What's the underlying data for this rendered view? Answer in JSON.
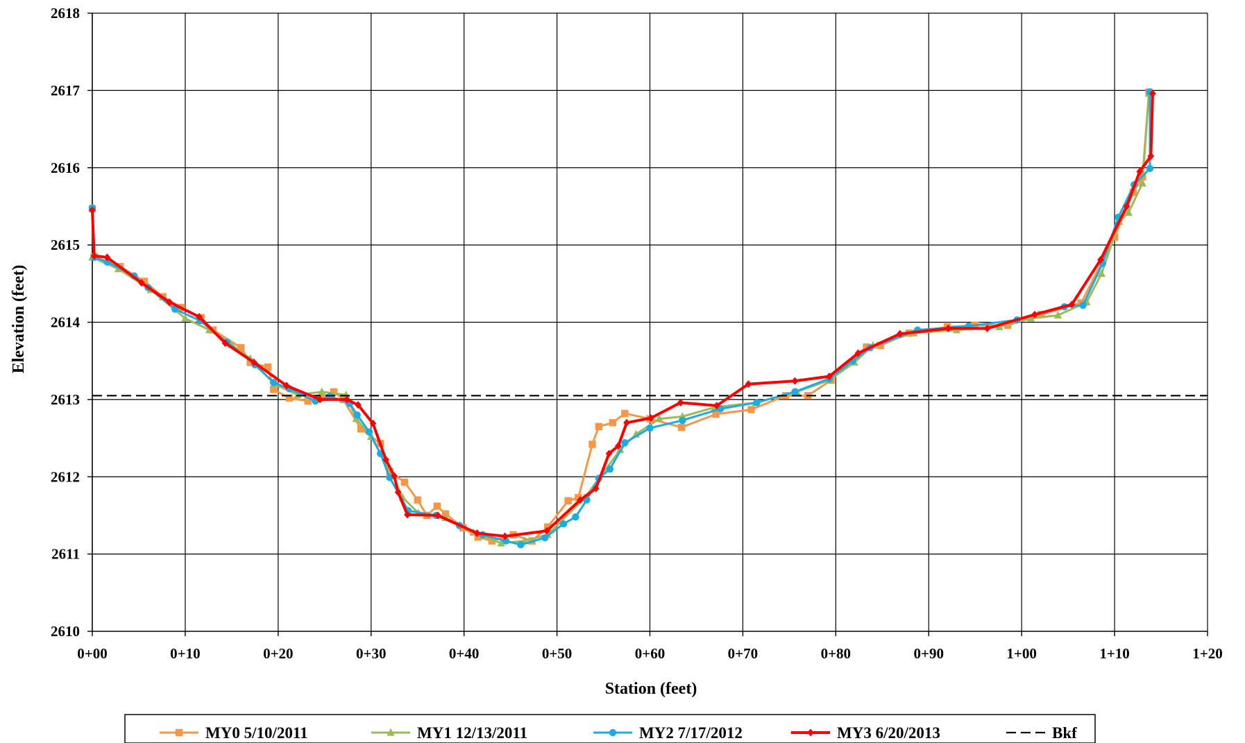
{
  "chart_data": {
    "type": "line",
    "title": "",
    "xlabel": "Station (feet)",
    "ylabel": "Elevation (feet)",
    "xlim": [
      0,
      120
    ],
    "ylim": [
      2610,
      2618
    ],
    "x_ticks": [
      0,
      10,
      20,
      30,
      40,
      50,
      60,
      70,
      80,
      90,
      100,
      110,
      120
    ],
    "x_tick_labels": [
      "0+00",
      "0+10",
      "0+20",
      "0+30",
      "0+40",
      "0+50",
      "0+60",
      "0+70",
      "0+80",
      "0+90",
      "1+00",
      "1+10",
      "1+20"
    ],
    "y_ticks": [
      2610,
      2611,
      2612,
      2613,
      2614,
      2615,
      2616,
      2617,
      2618
    ],
    "y_tick_labels": [
      "2610",
      "2611",
      "2612",
      "2613",
      "2614",
      "2615",
      "2616",
      "2617",
      "2618"
    ],
    "grid": true,
    "legend_position": "bottom",
    "series": [
      {
        "name": "MY0 5/10/2011",
        "color": "#F79646",
        "marker": "square",
        "points": [
          [
            0,
            2615.47
          ],
          [
            0.2,
            2614.85
          ],
          [
            3,
            2614.72
          ],
          [
            5.6,
            2614.53
          ],
          [
            7.6,
            2614.33
          ],
          [
            9.6,
            2614.19
          ],
          [
            11.7,
            2614.06
          ],
          [
            13,
            2613.9
          ],
          [
            16,
            2613.67
          ],
          [
            17,
            2613.48
          ],
          [
            18.9,
            2613.42
          ],
          [
            19.5,
            2613.13
          ],
          [
            21.2,
            2613.02
          ],
          [
            23.2,
            2612.98
          ],
          [
            24.5,
            2613.02
          ],
          [
            26,
            2613.1
          ],
          [
            27,
            2613
          ],
          [
            28.9,
            2612.62
          ],
          [
            31,
            2612.43
          ],
          [
            32,
            2612.07
          ],
          [
            33.6,
            2611.93
          ],
          [
            35,
            2611.7
          ],
          [
            36,
            2611.5
          ],
          [
            37.1,
            2611.62
          ],
          [
            38,
            2611.52
          ],
          [
            39.9,
            2611.34
          ],
          [
            41.5,
            2611.22
          ],
          [
            43,
            2611.17
          ],
          [
            45.3,
            2611.25
          ],
          [
            47.3,
            2611.17
          ],
          [
            49,
            2611.35
          ],
          [
            51.2,
            2611.69
          ],
          [
            52.3,
            2611.73
          ],
          [
            53.8,
            2612.42
          ],
          [
            54.5,
            2612.65
          ],
          [
            56,
            2612.7
          ],
          [
            57.3,
            2612.82
          ],
          [
            60,
            2612.75
          ],
          [
            63.4,
            2612.64
          ],
          [
            67.1,
            2612.81
          ],
          [
            70.9,
            2612.87
          ],
          [
            74.6,
            2613.05
          ],
          [
            77,
            2613.05
          ],
          [
            79.5,
            2613.25
          ],
          [
            83.3,
            2613.68
          ],
          [
            84.8,
            2613.7
          ],
          [
            87.9,
            2613.86
          ],
          [
            92,
            2613.94
          ],
          [
            95,
            2613.96
          ],
          [
            98.5,
            2613.96
          ],
          [
            102.1,
            2614.1
          ],
          [
            106.4,
            2614.25
          ],
          [
            110,
            2615.1
          ],
          [
            112,
            2615.68
          ],
          [
            113,
            2615.88
          ],
          [
            113.7,
            2616.98
          ]
        ]
      },
      {
        "name": "MY1 12/13/2011",
        "color": "#9BBB59",
        "marker": "triangle",
        "points": [
          [
            0,
            2614.84
          ],
          [
            2.8,
            2614.69
          ],
          [
            6.3,
            2614.42
          ],
          [
            10,
            2614.05
          ],
          [
            12.6,
            2613.9
          ],
          [
            15,
            2613.71
          ],
          [
            17,
            2613.53
          ],
          [
            19.6,
            2613.2
          ],
          [
            22.1,
            2613.06
          ],
          [
            24.7,
            2613.1
          ],
          [
            27.3,
            2613.06
          ],
          [
            28.4,
            2612.75
          ],
          [
            30,
            2612.52
          ],
          [
            32.3,
            2612.02
          ],
          [
            33.4,
            2611.73
          ],
          [
            35.1,
            2611.53
          ],
          [
            38,
            2611.47
          ],
          [
            41,
            2611.28
          ],
          [
            44,
            2611.14
          ],
          [
            46.5,
            2611.17
          ],
          [
            49,
            2611.25
          ],
          [
            53,
            2611.73
          ],
          [
            56.8,
            2612.35
          ],
          [
            58.5,
            2612.55
          ],
          [
            61,
            2612.75
          ],
          [
            63.5,
            2612.78
          ],
          [
            67,
            2612.9
          ],
          [
            71.4,
            2612.96
          ],
          [
            75.8,
            2613.1
          ],
          [
            79.3,
            2613.25
          ],
          [
            82,
            2613.48
          ],
          [
            84,
            2613.7
          ],
          [
            88.4,
            2613.86
          ],
          [
            93,
            2613.9
          ],
          [
            97.6,
            2613.94
          ],
          [
            101,
            2614.05
          ],
          [
            103.9,
            2614.09
          ],
          [
            107,
            2614.26
          ],
          [
            108.6,
            2614.63
          ],
          [
            110.5,
            2615.3
          ],
          [
            111.5,
            2615.42
          ],
          [
            113,
            2615.8
          ],
          [
            113.7,
            2616.96
          ]
        ]
      },
      {
        "name": "MY2 7/17/2012",
        "color": "#1CACE2",
        "marker": "circle",
        "points": [
          [
            0,
            2615.48
          ],
          [
            0.2,
            2614.84
          ],
          [
            1.6,
            2614.78
          ],
          [
            4.5,
            2614.6
          ],
          [
            6,
            2614.45
          ],
          [
            8.9,
            2614.17
          ],
          [
            11.6,
            2614.02
          ],
          [
            14.5,
            2613.74
          ],
          [
            17.5,
            2613.45
          ],
          [
            19.5,
            2613.22
          ],
          [
            21.2,
            2613.14
          ],
          [
            24,
            2612.98
          ],
          [
            25.6,
            2613.04
          ],
          [
            27.7,
            2612.95
          ],
          [
            28.5,
            2612.8
          ],
          [
            29.8,
            2612.58
          ],
          [
            31,
            2612.3
          ],
          [
            32,
            2611.99
          ],
          [
            34,
            2611.56
          ],
          [
            37,
            2611.5
          ],
          [
            39.5,
            2611.37
          ],
          [
            42,
            2611.25
          ],
          [
            44.5,
            2611.17
          ],
          [
            46.1,
            2611.12
          ],
          [
            48.7,
            2611.21
          ],
          [
            50.7,
            2611.39
          ],
          [
            52,
            2611.48
          ],
          [
            53.2,
            2611.7
          ],
          [
            54.5,
            2611.98
          ],
          [
            55.7,
            2612.1
          ],
          [
            57.3,
            2612.44
          ],
          [
            60,
            2612.63
          ],
          [
            63.5,
            2612.73
          ],
          [
            67.6,
            2612.88
          ],
          [
            71.5,
            2612.96
          ],
          [
            75.6,
            2613.1
          ],
          [
            79.3,
            2613.27
          ],
          [
            81.8,
            2613.5
          ],
          [
            83.7,
            2613.67
          ],
          [
            88.8,
            2613.9
          ],
          [
            94.3,
            2613.95
          ],
          [
            99.5,
            2614.03
          ],
          [
            104.6,
            2614.2
          ],
          [
            106.6,
            2614.22
          ],
          [
            108.7,
            2614.76
          ],
          [
            110.4,
            2615.36
          ],
          [
            112.1,
            2615.78
          ],
          [
            113.8,
            2615.99
          ],
          [
            113.8,
            2616.98
          ]
        ]
      },
      {
        "name": "MY3 6/20/2013",
        "color": "#FF0000",
        "marker": "diamond",
        "points": [
          [
            0,
            2615.45
          ],
          [
            0.2,
            2614.86
          ],
          [
            1.6,
            2614.84
          ],
          [
            5.3,
            2614.51
          ],
          [
            8.3,
            2614.26
          ],
          [
            11.5,
            2614.07
          ],
          [
            14.3,
            2613.73
          ],
          [
            17.4,
            2613.48
          ],
          [
            20.9,
            2613.18
          ],
          [
            24.5,
            2613
          ],
          [
            27.4,
            2613
          ],
          [
            28.6,
            2612.93
          ],
          [
            30.2,
            2612.69
          ],
          [
            31.6,
            2612.22
          ],
          [
            32.5,
            2612.01
          ],
          [
            32.9,
            2611.8
          ],
          [
            33.9,
            2611.51
          ],
          [
            37.2,
            2611.5
          ],
          [
            41.4,
            2611.27
          ],
          [
            44.4,
            2611.23
          ],
          [
            48.9,
            2611.3
          ],
          [
            52.5,
            2611.7
          ],
          [
            54.2,
            2611.85
          ],
          [
            55.6,
            2612.3
          ],
          [
            56.6,
            2612.4
          ],
          [
            57.5,
            2612.7
          ],
          [
            60.1,
            2612.76
          ],
          [
            63.3,
            2612.96
          ],
          [
            67.2,
            2612.92
          ],
          [
            70.6,
            2613.2
          ],
          [
            75.6,
            2613.24
          ],
          [
            79.3,
            2613.3
          ],
          [
            82.4,
            2613.6
          ],
          [
            86.9,
            2613.85
          ],
          [
            92.1,
            2613.92
          ],
          [
            96.3,
            2613.92
          ],
          [
            101.4,
            2614.1
          ],
          [
            105.4,
            2614.23
          ],
          [
            108.5,
            2614.81
          ],
          [
            111.3,
            2615.5
          ],
          [
            112.7,
            2615.95
          ],
          [
            113.9,
            2616.15
          ],
          [
            114.1,
            2616.96
          ]
        ]
      },
      {
        "name": "Bkf",
        "color": "#000000",
        "marker": "none",
        "dashed": true,
        "points": [
          [
            0,
            2613.05
          ],
          [
            120,
            2613.05
          ]
        ]
      }
    ]
  }
}
